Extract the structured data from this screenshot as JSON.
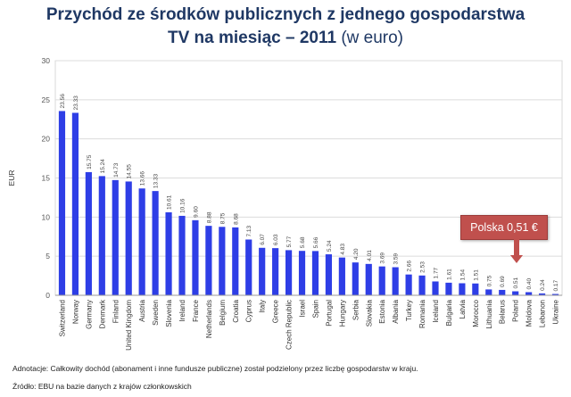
{
  "header": {
    "title_line1": "Przychód ze środków publicznych z jednego gospodarstwa",
    "title_line2_main": "TV na miesiąc – 2011",
    "title_line2_sub": "(w euro)"
  },
  "callout": {
    "text": "Polska 0,51 €"
  },
  "footer": {
    "annotation": "Adnotacje: Całkowity dochód (abonament i inne fundusze publiczne) został podzielony przez liczbę gospodarstw w kraju.",
    "source": "Źródło: EBU na bazie danych z krajów członkowskich"
  },
  "chart_data": {
    "type": "bar",
    "ylabel": "EUR",
    "ylim": [
      0,
      30
    ],
    "yticks": [
      0,
      5,
      10,
      15,
      20,
      25,
      30
    ],
    "grid": true,
    "bar_color": "#2e3ee6",
    "categories": [
      "Switzerland",
      "Norway",
      "Germany",
      "Denmark",
      "Finland",
      "United Kingdom",
      "Austria",
      "Sweden",
      "Slovenia",
      "Ireland",
      "France",
      "Netherlands",
      "Belgium",
      "Croatia",
      "Cyprus",
      "Italy",
      "Greece",
      "Czech Republic",
      "Israel",
      "Spain",
      "Portugal",
      "Hungary",
      "Serbia",
      "Slovakia",
      "Estonia",
      "Albania",
      "Turkey",
      "Romania",
      "Iceland",
      "Bulgaria",
      "Latvia",
      "Morocco",
      "Lithuania",
      "Belarus",
      "Poland",
      "Moldova",
      "Lebanon",
      "Ukraine"
    ],
    "values": [
      23.56,
      23.33,
      15.75,
      15.24,
      14.73,
      14.55,
      13.66,
      13.33,
      10.61,
      10.16,
      9.6,
      8.88,
      8.75,
      8.68,
      7.13,
      6.07,
      6.03,
      5.77,
      5.68,
      5.66,
      5.24,
      4.83,
      4.2,
      4.01,
      3.69,
      3.59,
      2.66,
      2.53,
      1.77,
      1.61,
      1.54,
      1.51,
      0.75,
      0.69,
      0.51,
      0.4,
      0.24,
      0.17
    ],
    "value_labels": [
      "23.56",
      "23.33",
      "15.75",
      "15.24",
      "14.73",
      "14.55",
      "13.66",
      "13.33",
      "10.61",
      "10.16",
      "9.60",
      "8.88",
      "8.75",
      "8.68",
      "7.13",
      "6.07",
      "6.03",
      "5.77",
      "5.68",
      "5.66",
      "5.24",
      "4.83",
      "4.20",
      "4.01",
      "3.69",
      "3.59",
      "2.66",
      "2.53",
      "1.77",
      "1.61",
      "1.54",
      "1.51",
      "0.75",
      "0.69",
      "0.51",
      "0.40",
      "0.24",
      "0.17"
    ]
  }
}
